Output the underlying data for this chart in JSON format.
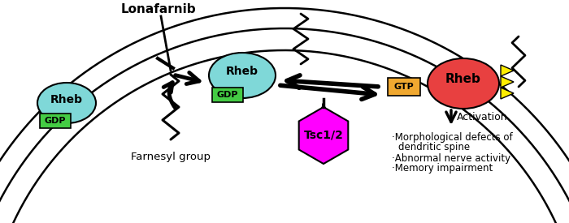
{
  "bg_color": "#ffffff",
  "rheb_inactive_color": "#7fd8d8",
  "rheb_active_color": "#e84040",
  "gdp_color": "#44cc44",
  "gtp_color": "#f0a830",
  "tsc_color": "#ff00ff",
  "yellow_color": "#ffee00",
  "lonafarnib_text": "Lonafarnib",
  "farnesyl_text": "Farnesyl group",
  "activation_text": "Activation",
  "gdp_text": "GDP",
  "gtp_text": "GTP",
  "tsc_text": "Tsc1/2",
  "rheb_text": "Rheb",
  "effects": [
    "·Morphological defects of",
    "dendritic spine",
    "·Abnormal nerve activity",
    "·Memory impairment"
  ],
  "figsize": [
    7.0,
    2.75
  ],
  "dpi": 100
}
